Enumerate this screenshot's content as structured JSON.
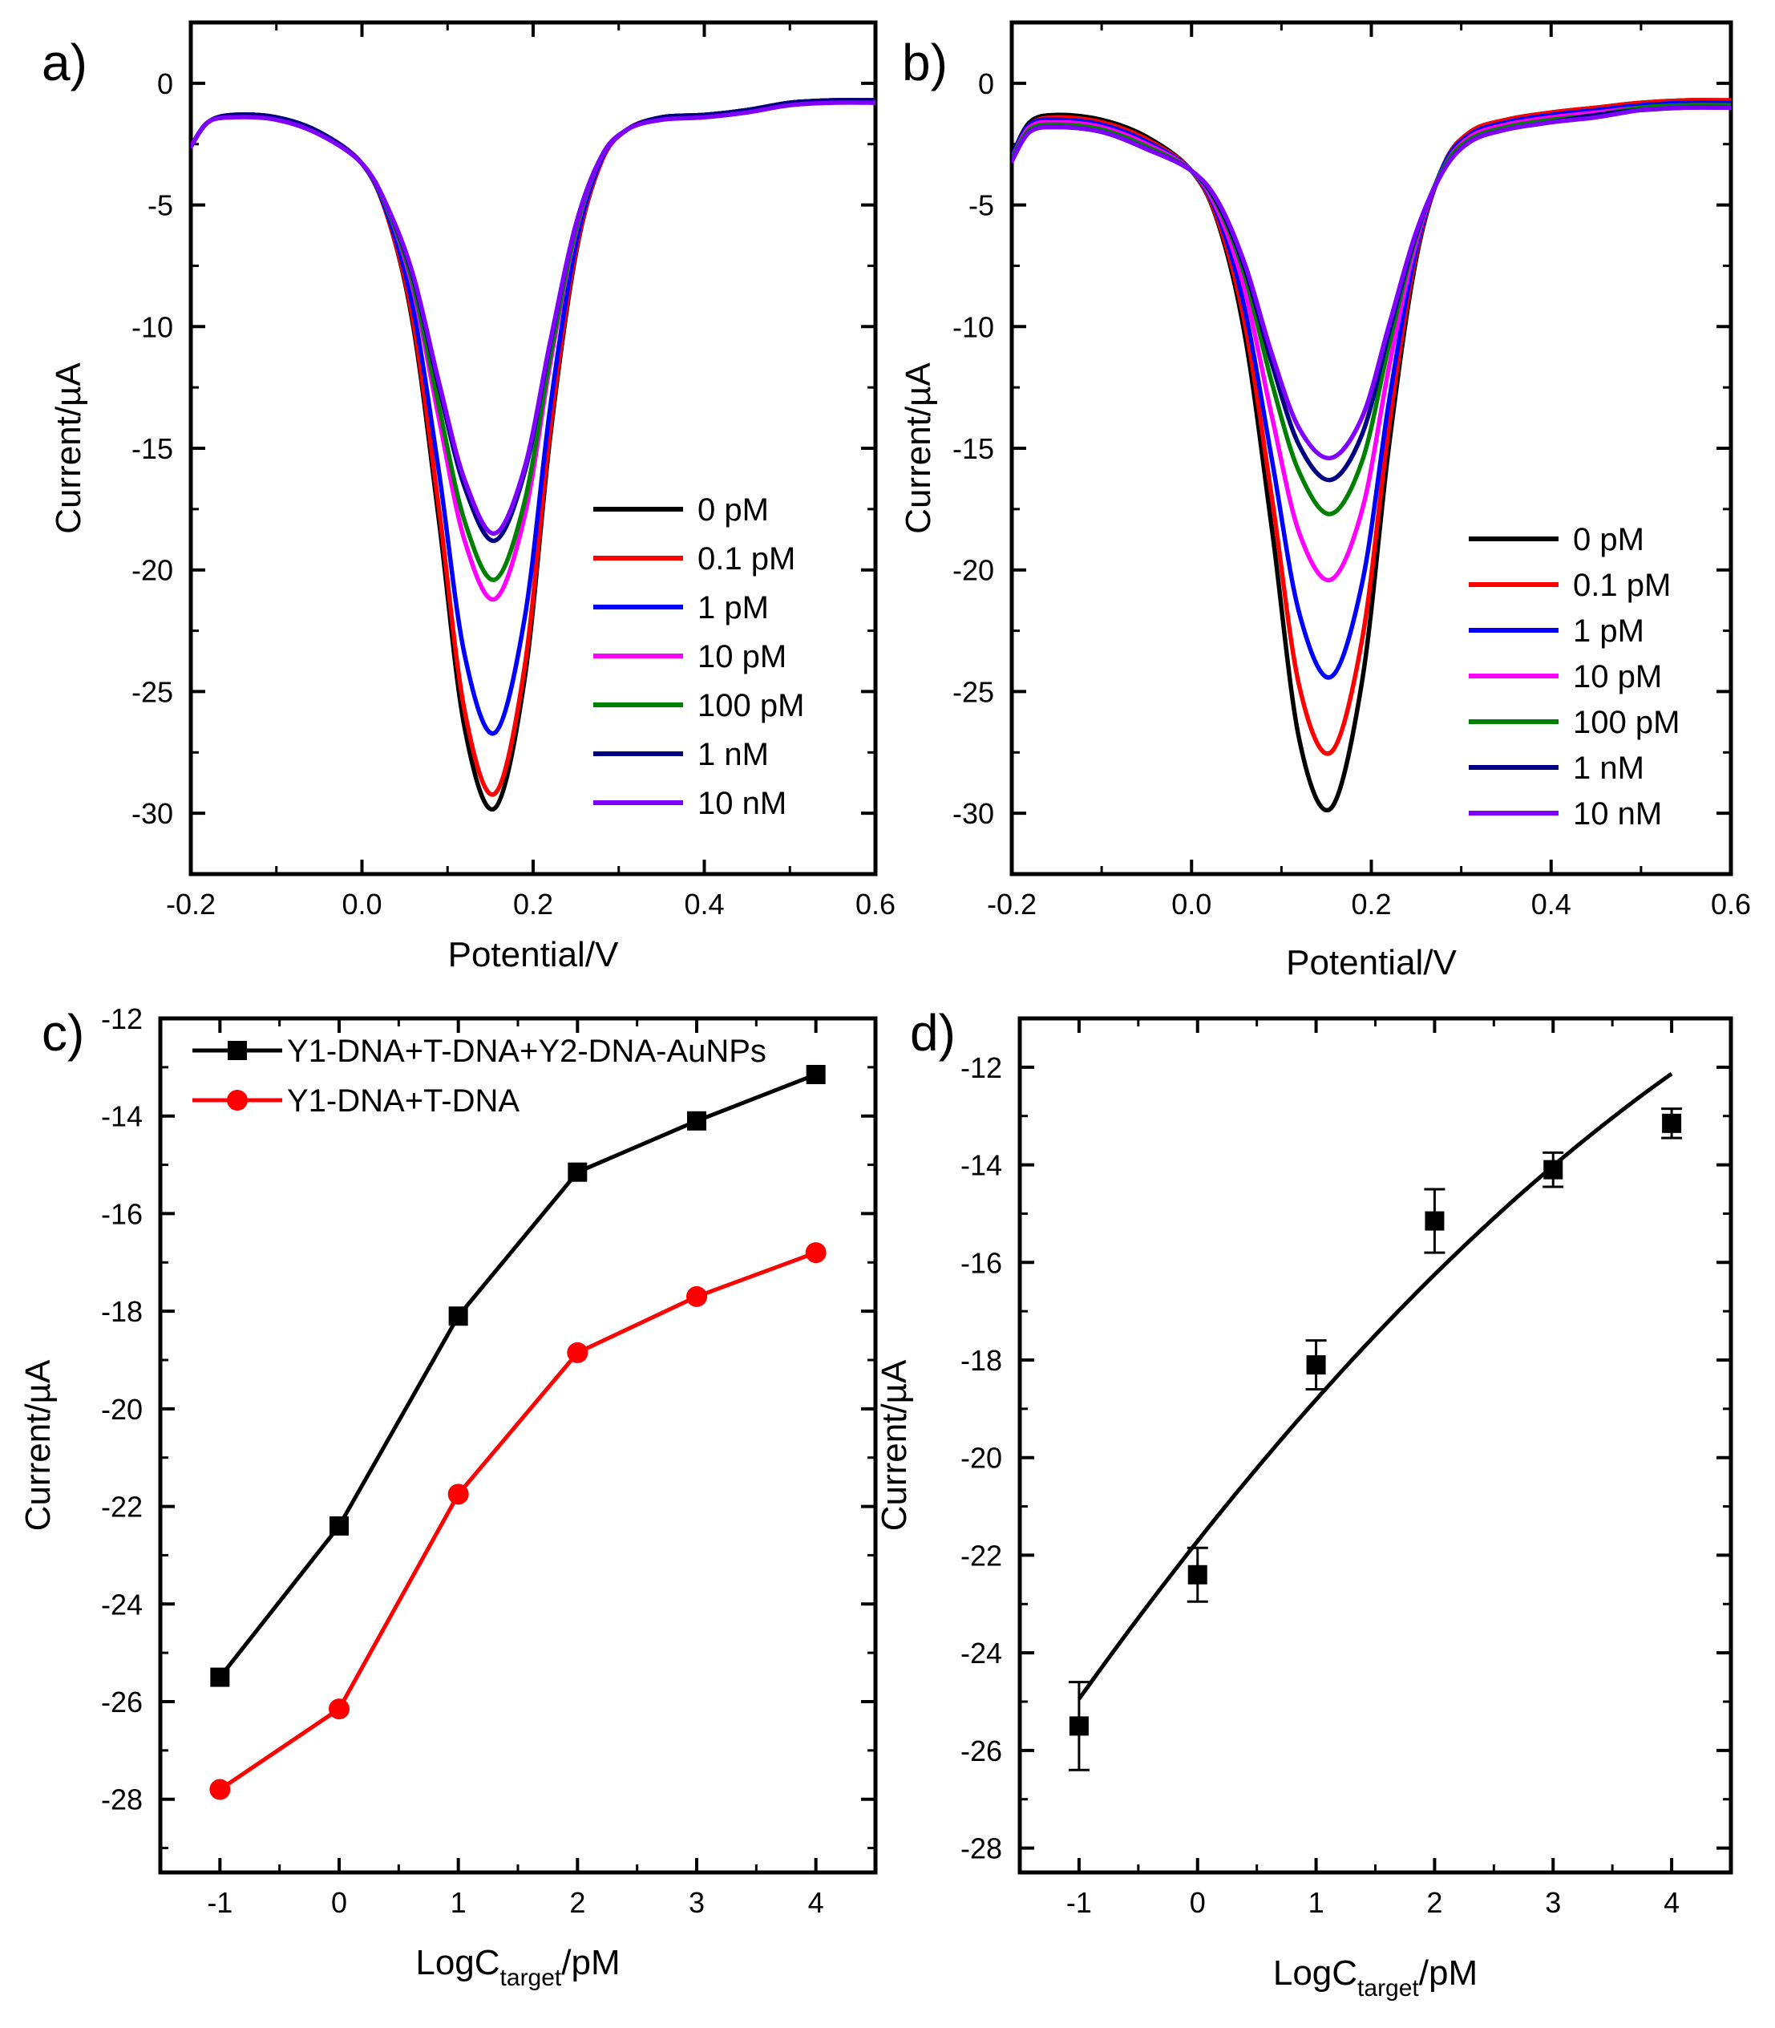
{
  "chart_data": [
    {
      "panel": "a)",
      "type": "line",
      "xlabel": "Potential/V",
      "ylabel": "Current/µA",
      "xlim": [
        -0.2,
        0.6
      ],
      "ylim": [
        -32.5,
        2.5
      ],
      "xticks": [
        "-0.2",
        "0.0",
        "0.2",
        "0.4",
        "0.6"
      ],
      "yticks": [
        "0",
        "-5",
        "-10",
        "-15",
        "-20",
        "-25",
        "-30"
      ],
      "x_sample_points": [
        -0.2,
        -0.18,
        -0.15,
        -0.1,
        -0.05,
        0.0,
        0.03,
        0.06,
        0.09,
        0.12,
        0.155,
        0.19,
        0.22,
        0.25,
        0.28,
        0.31,
        0.35,
        0.4,
        0.45,
        0.5,
        0.55,
        0.6
      ],
      "series": [
        {
          "name": "0 pM",
          "color": "#000000",
          "values": [
            -2.6,
            -1.6,
            -1.3,
            -1.4,
            -2.0,
            -3.3,
            -5.5,
            -10.0,
            -18.0,
            -26.5,
            -29.8,
            -24.5,
            -14.5,
            -7.0,
            -3.2,
            -1.9,
            -1.4,
            -1.3,
            -1.1,
            -0.8,
            -0.7,
            -0.7
          ]
        },
        {
          "name": "0.1 pM",
          "color": "#ff0000",
          "values": [
            -2.6,
            -1.6,
            -1.3,
            -1.4,
            -2.0,
            -3.3,
            -5.5,
            -9.8,
            -17.5,
            -25.8,
            -29.2,
            -24.0,
            -14.2,
            -6.9,
            -3.2,
            -1.9,
            -1.4,
            -1.3,
            -1.1,
            -0.8,
            -0.7,
            -0.7
          ]
        },
        {
          "name": "1 pM",
          "color": "#0000ff",
          "values": [
            -2.6,
            -1.6,
            -1.3,
            -1.4,
            -2.0,
            -3.3,
            -5.4,
            -9.3,
            -16.0,
            -23.5,
            -26.7,
            -22.0,
            -13.3,
            -6.6,
            -3.1,
            -1.9,
            -1.4,
            -1.3,
            -1.1,
            -0.8,
            -0.7,
            -0.7
          ]
        },
        {
          "name": "10 pM",
          "color": "#ff00ff",
          "values": [
            -2.6,
            -1.6,
            -1.3,
            -1.4,
            -2.0,
            -3.3,
            -5.2,
            -8.5,
            -13.8,
            -18.8,
            -21.2,
            -17.8,
            -11.5,
            -6.1,
            -3.0,
            -1.9,
            -1.4,
            -1.3,
            -1.1,
            -0.8,
            -0.7,
            -0.7
          ]
        },
        {
          "name": "100 pM",
          "color": "#008000",
          "values": [
            -2.6,
            -1.6,
            -1.3,
            -1.4,
            -2.0,
            -3.3,
            -5.2,
            -8.3,
            -13.3,
            -18.0,
            -20.4,
            -17.2,
            -11.2,
            -6.0,
            -3.0,
            -1.9,
            -1.4,
            -1.3,
            -1.1,
            -0.8,
            -0.7,
            -0.7
          ]
        },
        {
          "name": "1 nM",
          "color": "#000080",
          "values": [
            -2.6,
            -1.6,
            -1.3,
            -1.4,
            -2.0,
            -3.3,
            -5.1,
            -8.0,
            -12.5,
            -16.6,
            -18.8,
            -16.0,
            -10.7,
            -5.8,
            -3.0,
            -1.9,
            -1.4,
            -1.3,
            -1.1,
            -0.8,
            -0.7,
            -0.7
          ]
        },
        {
          "name": "10 nM",
          "color": "#8000ff",
          "values": [
            -2.6,
            -1.6,
            -1.4,
            -1.5,
            -2.1,
            -3.3,
            -5.1,
            -7.9,
            -12.3,
            -16.3,
            -18.5,
            -15.8,
            -10.6,
            -5.8,
            -3.0,
            -1.9,
            -1.5,
            -1.4,
            -1.2,
            -0.9,
            -0.8,
            -0.8
          ]
        }
      ]
    },
    {
      "panel": "b)",
      "type": "line",
      "xlabel": "Potential/V",
      "ylabel": "Current/µA",
      "xlim": [
        -0.2,
        0.6
      ],
      "ylim": [
        -32.5,
        2.5
      ],
      "xticks": [
        "-0.2",
        "0.0",
        "0.2",
        "0.4",
        "0.6"
      ],
      "yticks": [
        "0",
        "-5",
        "-10",
        "-15",
        "-20",
        "-25",
        "-30"
      ],
      "x_sample_points": [
        -0.2,
        -0.18,
        -0.15,
        -0.1,
        -0.05,
        0.0,
        0.03,
        0.06,
        0.09,
        0.12,
        0.155,
        0.19,
        0.22,
        0.25,
        0.28,
        0.31,
        0.35,
        0.4,
        0.45,
        0.5,
        0.55,
        0.6
      ],
      "series": [
        {
          "name": "0 pM",
          "color": "#000000",
          "values": [
            -3.0,
            -1.6,
            -1.3,
            -1.5,
            -2.2,
            -3.6,
            -5.8,
            -10.5,
            -18.5,
            -27.0,
            -29.8,
            -24.5,
            -14.8,
            -7.2,
            -3.4,
            -2.0,
            -1.5,
            -1.2,
            -1.0,
            -0.8,
            -0.7,
            -0.7
          ]
        },
        {
          "name": "0.1 pM",
          "color": "#ff0000",
          "values": [
            -3.0,
            -1.7,
            -1.4,
            -1.6,
            -2.3,
            -3.6,
            -5.7,
            -10.0,
            -17.2,
            -24.8,
            -27.5,
            -22.8,
            -14.0,
            -7.0,
            -3.4,
            -2.0,
            -1.5,
            -1.2,
            -1.0,
            -0.8,
            -0.7,
            -0.7
          ]
        },
        {
          "name": "1 pM",
          "color": "#0000ff",
          "values": [
            -3.0,
            -1.7,
            -1.5,
            -1.7,
            -2.4,
            -3.6,
            -5.5,
            -9.4,
            -15.6,
            -21.8,
            -24.4,
            -20.5,
            -13.0,
            -6.8,
            -3.4,
            -2.1,
            -1.6,
            -1.3,
            -1.1,
            -0.9,
            -0.8,
            -0.8
          ]
        },
        {
          "name": "10 pM",
          "color": "#ff00ff",
          "values": [
            -3.1,
            -1.8,
            -1.6,
            -1.8,
            -2.5,
            -3.6,
            -5.3,
            -8.6,
            -13.8,
            -18.5,
            -20.4,
            -17.5,
            -11.6,
            -6.5,
            -3.5,
            -2.2,
            -1.7,
            -1.4,
            -1.2,
            -1.0,
            -0.9,
            -0.9
          ]
        },
        {
          "name": "100 pM",
          "color": "#008000",
          "values": [
            -3.1,
            -1.9,
            -1.7,
            -1.9,
            -2.6,
            -3.6,
            -5.1,
            -8.0,
            -12.4,
            -16.0,
            -17.7,
            -15.5,
            -10.7,
            -6.3,
            -3.5,
            -2.3,
            -1.8,
            -1.5,
            -1.3,
            -1.0,
            -0.9,
            -0.9
          ]
        },
        {
          "name": "1 nM",
          "color": "#000080",
          "values": [
            -3.2,
            -2.0,
            -1.8,
            -2.0,
            -2.7,
            -3.6,
            -5.0,
            -7.7,
            -11.6,
            -14.9,
            -16.3,
            -14.4,
            -10.2,
            -6.2,
            -3.6,
            -2.4,
            -1.9,
            -1.6,
            -1.3,
            -1.1,
            -1.0,
            -1.0
          ]
        },
        {
          "name": "10 nM",
          "color": "#8000ff",
          "values": [
            -3.2,
            -2.0,
            -1.8,
            -2.0,
            -2.7,
            -3.6,
            -4.9,
            -7.5,
            -11.2,
            -14.2,
            -15.4,
            -13.7,
            -9.9,
            -6.1,
            -3.6,
            -2.4,
            -1.9,
            -1.6,
            -1.4,
            -1.1,
            -1.0,
            -1.0
          ]
        }
      ]
    },
    {
      "panel": "c)",
      "type": "line",
      "xlabel_main": "LogC",
      "xlabel_sub": "target",
      "xlabel_tail": "/pM",
      "ylabel": "Current/µA",
      "xlim": [
        -1.5,
        4.5
      ],
      "ylim": [
        -29.5,
        -12
      ],
      "xticks": [
        "-1",
        "0",
        "1",
        "2",
        "3",
        "4"
      ],
      "yticks": [
        "-12",
        "-14",
        "-16",
        "-18",
        "-20",
        "-22",
        "-24",
        "-26",
        "-28"
      ],
      "x": [
        -1,
        0,
        1,
        2,
        3,
        4
      ],
      "series": [
        {
          "name": "Y1-DNA+T-DNA+Y2-DNA-AuNPs",
          "color": "#000000",
          "marker": "square",
          "values": [
            -25.5,
            -22.4,
            -18.1,
            -15.15,
            -14.1,
            -13.15
          ]
        },
        {
          "name": "Y1-DNA+T-DNA",
          "color": "#ff0000",
          "marker": "circle",
          "values": [
            -27.8,
            -26.15,
            -21.75,
            -18.85,
            -17.7,
            -16.8
          ]
        }
      ]
    },
    {
      "panel": "d)",
      "type": "scatter",
      "xlabel_main": "LogC",
      "xlabel_sub": "target",
      "xlabel_tail": "/pM",
      "ylabel": "Current/µA",
      "xlim": [
        -1.5,
        4.5
      ],
      "ylim": [
        -28.5,
        -11
      ],
      "xticks": [
        "-1",
        "0",
        "1",
        "2",
        "3",
        "4"
      ],
      "yticks": [
        "-12",
        "-14",
        "-16",
        "-18",
        "-20",
        "-22",
        "-24",
        "-26",
        "-28"
      ],
      "x": [
        -1,
        0,
        1,
        2,
        3,
        4
      ],
      "values": [
        -25.5,
        -22.4,
        -18.1,
        -15.15,
        -14.1,
        -13.15
      ],
      "errors": [
        0.9,
        0.55,
        0.5,
        0.65,
        0.35,
        0.3
      ],
      "fit": {
        "type": "quadratic",
        "a": -0.1682,
        "b": 3.067,
        "c": -21.71,
        "x_range": [
          -1,
          4
        ]
      }
    }
  ]
}
